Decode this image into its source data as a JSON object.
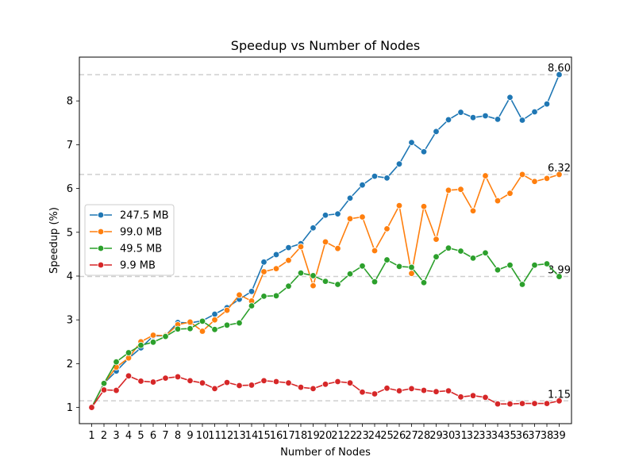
{
  "chart_data": {
    "type": "line",
    "title": "Speedup vs Number of Nodes",
    "xlabel": "Number of Nodes",
    "ylabel": "Speedup (%)",
    "x": [
      1,
      2,
      3,
      4,
      5,
      6,
      7,
      8,
      9,
      10,
      11,
      12,
      13,
      14,
      15,
      16,
      17,
      18,
      19,
      20,
      21,
      22,
      23,
      24,
      25,
      26,
      27,
      28,
      29,
      30,
      31,
      32,
      33,
      34,
      35,
      36,
      37,
      38,
      39
    ],
    "xlim": [
      0,
      40
    ],
    "ylim": [
      0.63,
      9.0
    ],
    "yticks": [
      1,
      2,
      3,
      4,
      5,
      6,
      7,
      8
    ],
    "grid": false,
    "legend_position": "center-left",
    "series": [
      {
        "name": "247.5 MB",
        "color": "#1f77b4",
        "values": [
          1.0,
          1.55,
          1.83,
          2.12,
          2.36,
          2.63,
          2.64,
          2.94,
          2.93,
          2.98,
          3.13,
          3.28,
          3.47,
          3.65,
          4.32,
          4.49,
          4.65,
          4.74,
          5.1,
          5.39,
          5.42,
          5.78,
          6.08,
          6.28,
          6.24,
          6.56,
          7.05,
          6.84,
          7.3,
          7.57,
          7.74,
          7.62,
          7.66,
          7.58,
          8.08,
          7.56,
          7.75,
          7.93,
          8.6
        ]
      },
      {
        "name": "99.0 MB",
        "color": "#ff7f0e",
        "values": [
          1.0,
          1.55,
          1.92,
          2.13,
          2.5,
          2.65,
          2.64,
          2.89,
          2.95,
          2.74,
          3.0,
          3.22,
          3.57,
          3.43,
          4.1,
          4.17,
          4.36,
          4.67,
          3.78,
          4.78,
          4.63,
          5.31,
          5.35,
          4.58,
          5.08,
          5.61,
          4.06,
          5.59,
          4.84,
          5.96,
          5.98,
          5.49,
          6.29,
          5.72,
          5.89,
          6.32,
          6.16,
          6.23,
          6.32
        ]
      },
      {
        "name": "49.5 MB",
        "color": "#2ca02c",
        "values": [
          1.0,
          1.55,
          2.04,
          2.25,
          2.42,
          2.49,
          2.62,
          2.79,
          2.8,
          2.97,
          2.78,
          2.88,
          2.93,
          3.32,
          3.54,
          3.55,
          3.77,
          4.07,
          4.01,
          3.88,
          3.81,
          4.05,
          4.23,
          3.87,
          4.37,
          4.22,
          4.2,
          3.85,
          4.44,
          4.64,
          4.57,
          4.41,
          4.53,
          4.14,
          4.25,
          3.81,
          4.25,
          4.28,
          3.99
        ]
      },
      {
        "name": "9.9 MB",
        "color": "#d62728",
        "values": [
          1.0,
          1.4,
          1.39,
          1.72,
          1.6,
          1.58,
          1.67,
          1.7,
          1.61,
          1.56,
          1.43,
          1.57,
          1.5,
          1.51,
          1.61,
          1.59,
          1.56,
          1.46,
          1.43,
          1.53,
          1.59,
          1.56,
          1.35,
          1.31,
          1.44,
          1.38,
          1.43,
          1.39,
          1.36,
          1.38,
          1.24,
          1.27,
          1.23,
          1.08,
          1.08,
          1.09,
          1.09,
          1.09,
          1.15
        ]
      }
    ],
    "reference_lines": [
      {
        "value": 8.6,
        "label": "8.60"
      },
      {
        "value": 6.32,
        "label": "6.32"
      },
      {
        "value": 3.99,
        "label": "3.99"
      },
      {
        "value": 1.15,
        "label": "1.15"
      }
    ]
  }
}
